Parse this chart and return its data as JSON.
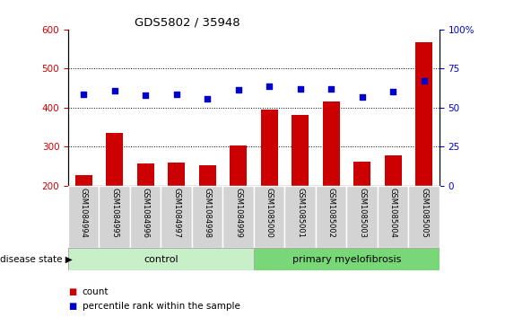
{
  "title": "GDS5802 / 35948",
  "categories": [
    "GSM1084994",
    "GSM1084995",
    "GSM1084996",
    "GSM1084997",
    "GSM1084998",
    "GSM1084999",
    "GSM1085000",
    "GSM1085001",
    "GSM1085002",
    "GSM1085003",
    "GSM1085004",
    "GSM1085005"
  ],
  "bar_values": [
    228,
    335,
    257,
    260,
    253,
    303,
    396,
    381,
    415,
    261,
    277,
    567
  ],
  "dot_values": [
    435,
    442,
    432,
    434,
    422,
    445,
    455,
    448,
    447,
    427,
    440,
    468
  ],
  "bar_color": "#cc0000",
  "dot_color": "#0000cc",
  "control_label": "control",
  "myelofibrosis_label": "primary myelofibrosis",
  "disease_state_label": "disease state",
  "ylim_left": [
    200,
    600
  ],
  "ylim_right": [
    0,
    100
  ],
  "yticks_left": [
    200,
    300,
    400,
    500,
    600
  ],
  "yticks_right": [
    0,
    25,
    50,
    75,
    100
  ],
  "grid_values": [
    300,
    400,
    500
  ],
  "legend_count": "count",
  "legend_percentile": "percentile rank within the sample",
  "control_bg": "#c8f0c8",
  "myelofibrosis_bg": "#78d878",
  "xlabel_area_bg": "#d3d3d3",
  "n_control": 6,
  "n_total": 12
}
